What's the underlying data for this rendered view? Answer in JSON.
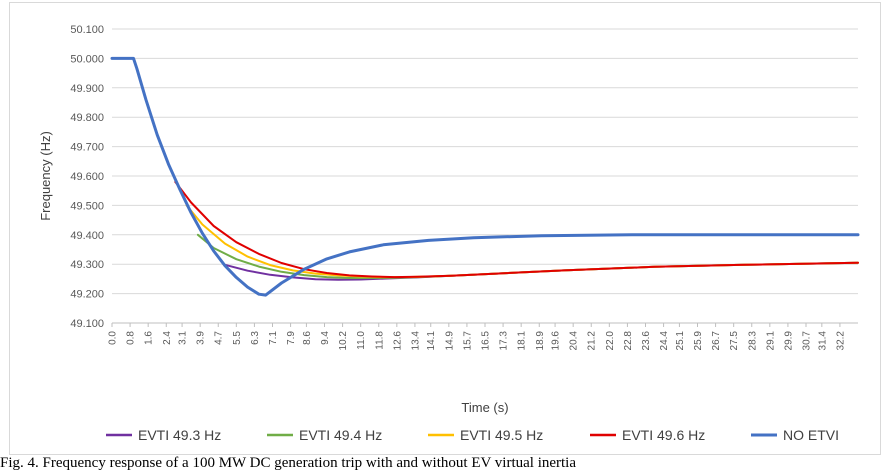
{
  "chart_data": {
    "type": "line",
    "title": "",
    "xlabel": "Time (s)",
    "ylabel": "Frequency (Hz)",
    "xlim": [
      0.0,
      33.0
    ],
    "ylim": [
      49.1,
      50.1
    ],
    "grid": true,
    "legend_position": "bottom",
    "x_tick_labels": [
      "0.0",
      "0.8",
      "1.6",
      "2.4",
      "3.1",
      "3.9",
      "4.7",
      "5.5",
      "6.3",
      "7.1",
      "7.9",
      "8.6",
      "9.4",
      "10.2",
      "11.0",
      "11.8",
      "12.6",
      "13.4",
      "14.1",
      "14.9",
      "15.7",
      "16.5",
      "17.3",
      "18.1",
      "18.9",
      "19.6",
      "20.4",
      "21.2",
      "22.0",
      "22.8",
      "23.6",
      "24.4",
      "25.1",
      "25.9",
      "26.7",
      "27.5",
      "28.3",
      "29.1",
      "29.9",
      "30.7",
      "31.4",
      "32.2"
    ],
    "y_tick_labels": [
      "49.100",
      "49.200",
      "49.300",
      "49.400",
      "49.500",
      "49.600",
      "49.700",
      "49.800",
      "49.900",
      "50.000",
      "50.100"
    ],
    "series": [
      {
        "name": "EVTI 49.3 Hz",
        "color": "#7030a0",
        "x": [
          5.0,
          6.0,
          7.0,
          8.0,
          9.0,
          10.0,
          11.0,
          12.0,
          13.5,
          15.0,
          17.0,
          20.0,
          24.0,
          28.0,
          33.0
        ],
        "y": [
          49.298,
          49.278,
          49.264,
          49.255,
          49.249,
          49.247,
          49.248,
          49.251,
          49.255,
          49.261,
          49.268,
          49.279,
          49.291,
          49.298,
          49.305
        ]
      },
      {
        "name": "EVTI 49.4 Hz",
        "color": "#70ad47",
        "x": [
          3.8,
          4.5,
          5.5,
          6.5,
          7.5,
          8.5,
          9.5,
          10.5,
          11.5,
          12.5,
          13.5,
          15.0,
          17.0,
          20.0,
          24.0,
          28.0,
          33.0
        ],
        "y": [
          49.4,
          49.355,
          49.317,
          49.292,
          49.274,
          49.263,
          49.256,
          49.253,
          49.253,
          49.254,
          49.256,
          49.261,
          49.268,
          49.279,
          49.291,
          49.298,
          49.305
        ]
      },
      {
        "name": "EVTI 49.5 Hz",
        "color": "#ffc000",
        "x": [
          3.3,
          4.0,
          5.0,
          6.0,
          7.0,
          8.0,
          9.0,
          10.0,
          11.0,
          12.0,
          13.0,
          14.0,
          15.0,
          17.0,
          20.0,
          24.0,
          28.0,
          33.0
        ],
        "y": [
          49.5,
          49.435,
          49.37,
          49.326,
          49.297,
          49.279,
          49.268,
          49.262,
          49.258,
          49.256,
          49.256,
          49.258,
          49.261,
          49.268,
          49.279,
          49.291,
          49.298,
          49.305
        ]
      },
      {
        "name": "EVTI 49.6 Hz",
        "color": "#e00000",
        "x": [
          2.8,
          3.5,
          4.5,
          5.5,
          6.5,
          7.5,
          8.5,
          9.5,
          10.5,
          11.5,
          12.5,
          13.5,
          15.0,
          17.0,
          20.0,
          24.0,
          28.0,
          33.0
        ],
        "y": [
          49.58,
          49.51,
          49.43,
          49.375,
          49.335,
          49.304,
          49.283,
          49.27,
          49.262,
          49.258,
          49.256,
          49.257,
          49.261,
          49.268,
          49.279,
          49.291,
          49.298,
          49.305
        ]
      },
      {
        "name": "NO ETVI",
        "color": "#4472c4",
        "x": [
          0.0,
          0.95,
          1.1,
          1.5,
          2.0,
          2.5,
          3.0,
          3.5,
          4.0,
          4.5,
          5.0,
          5.5,
          6.0,
          6.5,
          6.8,
          7.5,
          8.5,
          9.5,
          10.5,
          12.0,
          14.0,
          16.0,
          19.0,
          23.0,
          28.0,
          33.0
        ],
        "y": [
          50.0,
          50.0,
          49.965,
          49.86,
          49.74,
          49.64,
          49.555,
          49.475,
          49.405,
          49.345,
          49.295,
          49.255,
          49.222,
          49.198,
          49.195,
          49.236,
          49.283,
          49.318,
          49.342,
          49.366,
          49.381,
          49.39,
          49.397,
          49.4,
          49.4,
          49.4
        ]
      }
    ]
  },
  "caption": "Fig. 4.  Frequency response of a 100 MW DC generation trip with and without EV virtual inertia"
}
